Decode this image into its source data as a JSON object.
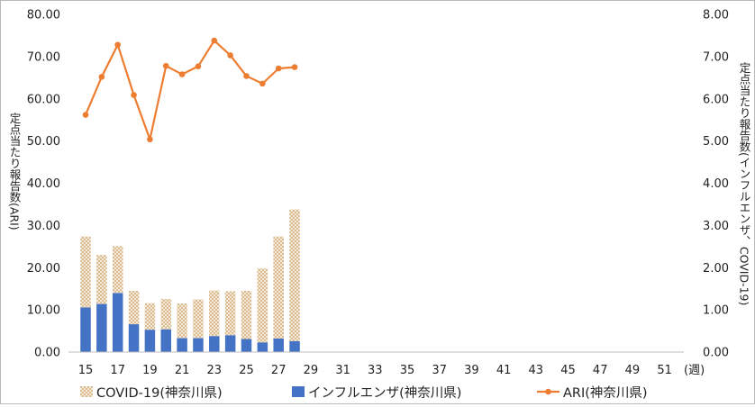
{
  "chart_data": {
    "type": "bar+line",
    "x": [
      15,
      16,
      17,
      18,
      19,
      20,
      21,
      22,
      23,
      24,
      25,
      26,
      27,
      28
    ],
    "x_tick_labels": [
      "15",
      "17",
      "19",
      "21",
      "23",
      "25",
      "27",
      "29",
      "31",
      "33",
      "35",
      "37",
      "39",
      "41",
      "43",
      "45",
      "47",
      "49",
      "51"
    ],
    "x_unit_label": "(週)",
    "x_range": [
      15,
      52
    ],
    "y_left_ticks": [
      "0.00",
      "10.00",
      "20.00",
      "30.00",
      "40.00",
      "50.00",
      "60.00",
      "70.00",
      "80.00"
    ],
    "y_left_range": [
      0,
      80
    ],
    "y_right_ticks": [
      "0.00",
      "1.00",
      "2.00",
      "3.00",
      "4.00",
      "5.00",
      "6.00",
      "7.00",
      "8.00"
    ],
    "y_right_range": [
      0,
      8
    ],
    "y_left_title": "定点当たり報告数(ARI)",
    "y_right_title": "定点当たり報告数(インフルエンザ、COVID-19)",
    "series": [
      {
        "name": "COVID-19(神奈川県)",
        "kind": "stacked-bar",
        "axis": "right",
        "pattern": "dotted-tan",
        "values": [
          1.68,
          1.16,
          1.11,
          0.79,
          0.63,
          0.72,
          0.82,
          0.92,
          1.08,
          1.04,
          1.14,
          1.75,
          2.42,
          3.12
        ]
      },
      {
        "name": "インフルエンザ(神奈川県)",
        "kind": "stacked-bar",
        "axis": "right",
        "color": "#4472c4",
        "values": [
          1.06,
          1.14,
          1.4,
          0.66,
          0.53,
          0.54,
          0.33,
          0.33,
          0.38,
          0.4,
          0.31,
          0.23,
          0.32,
          0.26
        ]
      },
      {
        "name": "ARI(神奈川県)",
        "kind": "line",
        "axis": "left",
        "color": "#ed7d31",
        "values": [
          56.2,
          65.2,
          72.8,
          60.9,
          50.4,
          67.8,
          65.8,
          67.7,
          73.8,
          70.3,
          65.4,
          63.6,
          67.2,
          67.5
        ]
      }
    ],
    "grid": false,
    "legend_position": "bottom"
  }
}
